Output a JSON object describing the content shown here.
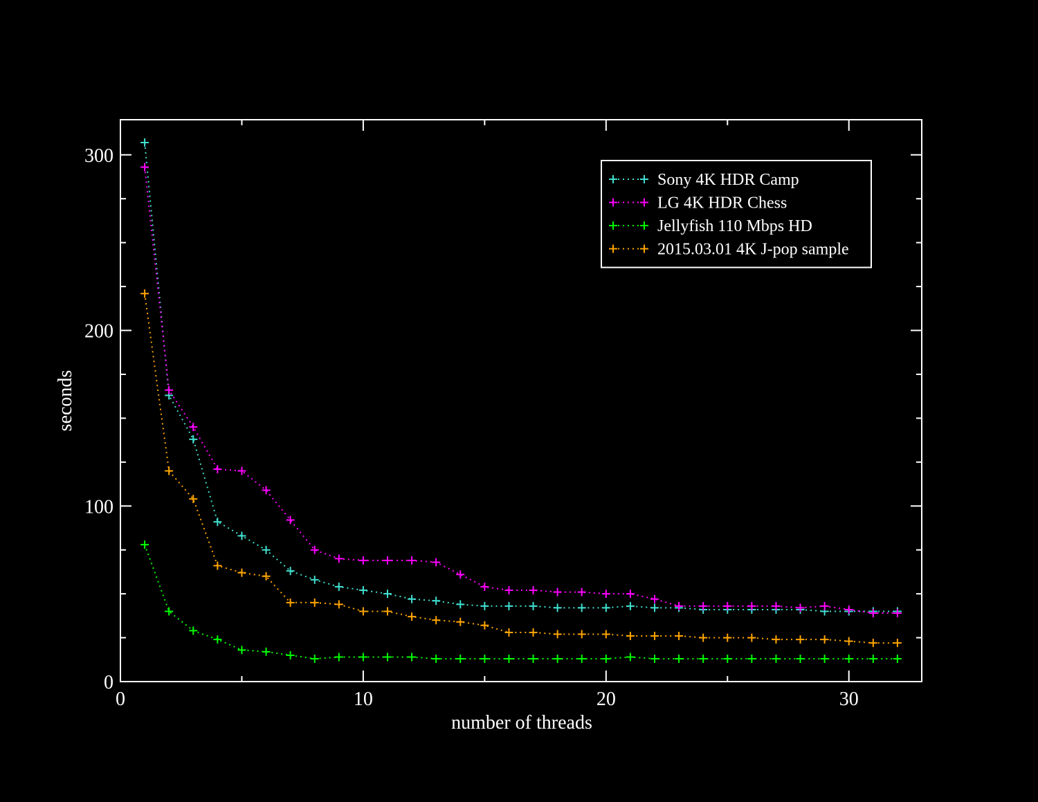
{
  "chart_data": {
    "type": "line",
    "title": "",
    "xlabel": "number of threads",
    "ylabel": "seconds",
    "xlim": [
      0,
      33
    ],
    "ylim": [
      0,
      320
    ],
    "x_ticks": [
      0,
      10,
      20,
      30
    ],
    "y_ticks": [
      0,
      100,
      200,
      300
    ],
    "x_minor_step": 5,
    "y_minor_step": 25,
    "grid": false,
    "legend_position": "top-right",
    "line_style": "dotted",
    "marker": "plus",
    "x": [
      1,
      2,
      3,
      4,
      5,
      6,
      7,
      8,
      9,
      10,
      11,
      12,
      13,
      14,
      15,
      16,
      17,
      18,
      19,
      20,
      21,
      22,
      23,
      24,
      25,
      26,
      27,
      28,
      29,
      30,
      31,
      32
    ],
    "series": [
      {
        "name": "Sony 4K HDR Camp",
        "color": "#40e0d0",
        "values": [
          307,
          163,
          138,
          91,
          83,
          75,
          63,
          58,
          54,
          52,
          50,
          47,
          46,
          44,
          43,
          43,
          43,
          42,
          42,
          42,
          43,
          42,
          42,
          41,
          41,
          41,
          41,
          41,
          40,
          40,
          40,
          40
        ]
      },
      {
        "name": "LG 4K HDR Chess",
        "color": "#ff00ff",
        "values": [
          293,
          166,
          145,
          121,
          120,
          109,
          92,
          75,
          70,
          69,
          69,
          69,
          68,
          61,
          54,
          52,
          52,
          51,
          51,
          50,
          50,
          47,
          43,
          43,
          43,
          43,
          43,
          42,
          43,
          41,
          39,
          39
        ]
      },
      {
        "name": "Jellyfish 110 Mbps HD",
        "color": "#00ff00",
        "values": [
          78,
          40,
          29,
          24,
          18,
          17,
          15,
          13,
          14,
          14,
          14,
          14,
          13,
          13,
          13,
          13,
          13,
          13,
          13,
          13,
          14,
          13,
          13,
          13,
          13,
          13,
          13,
          13,
          13,
          13,
          13,
          13
        ]
      },
      {
        "name": "2015.03.01 4K J-pop sample",
        "color": "#ffa500",
        "values": [
          221,
          120,
          104,
          66,
          62,
          60,
          45,
          45,
          44,
          40,
          40,
          37,
          35,
          34,
          32,
          28,
          28,
          27,
          27,
          27,
          26,
          26,
          26,
          25,
          25,
          25,
          24,
          24,
          24,
          23,
          22,
          22
        ]
      }
    ]
  }
}
